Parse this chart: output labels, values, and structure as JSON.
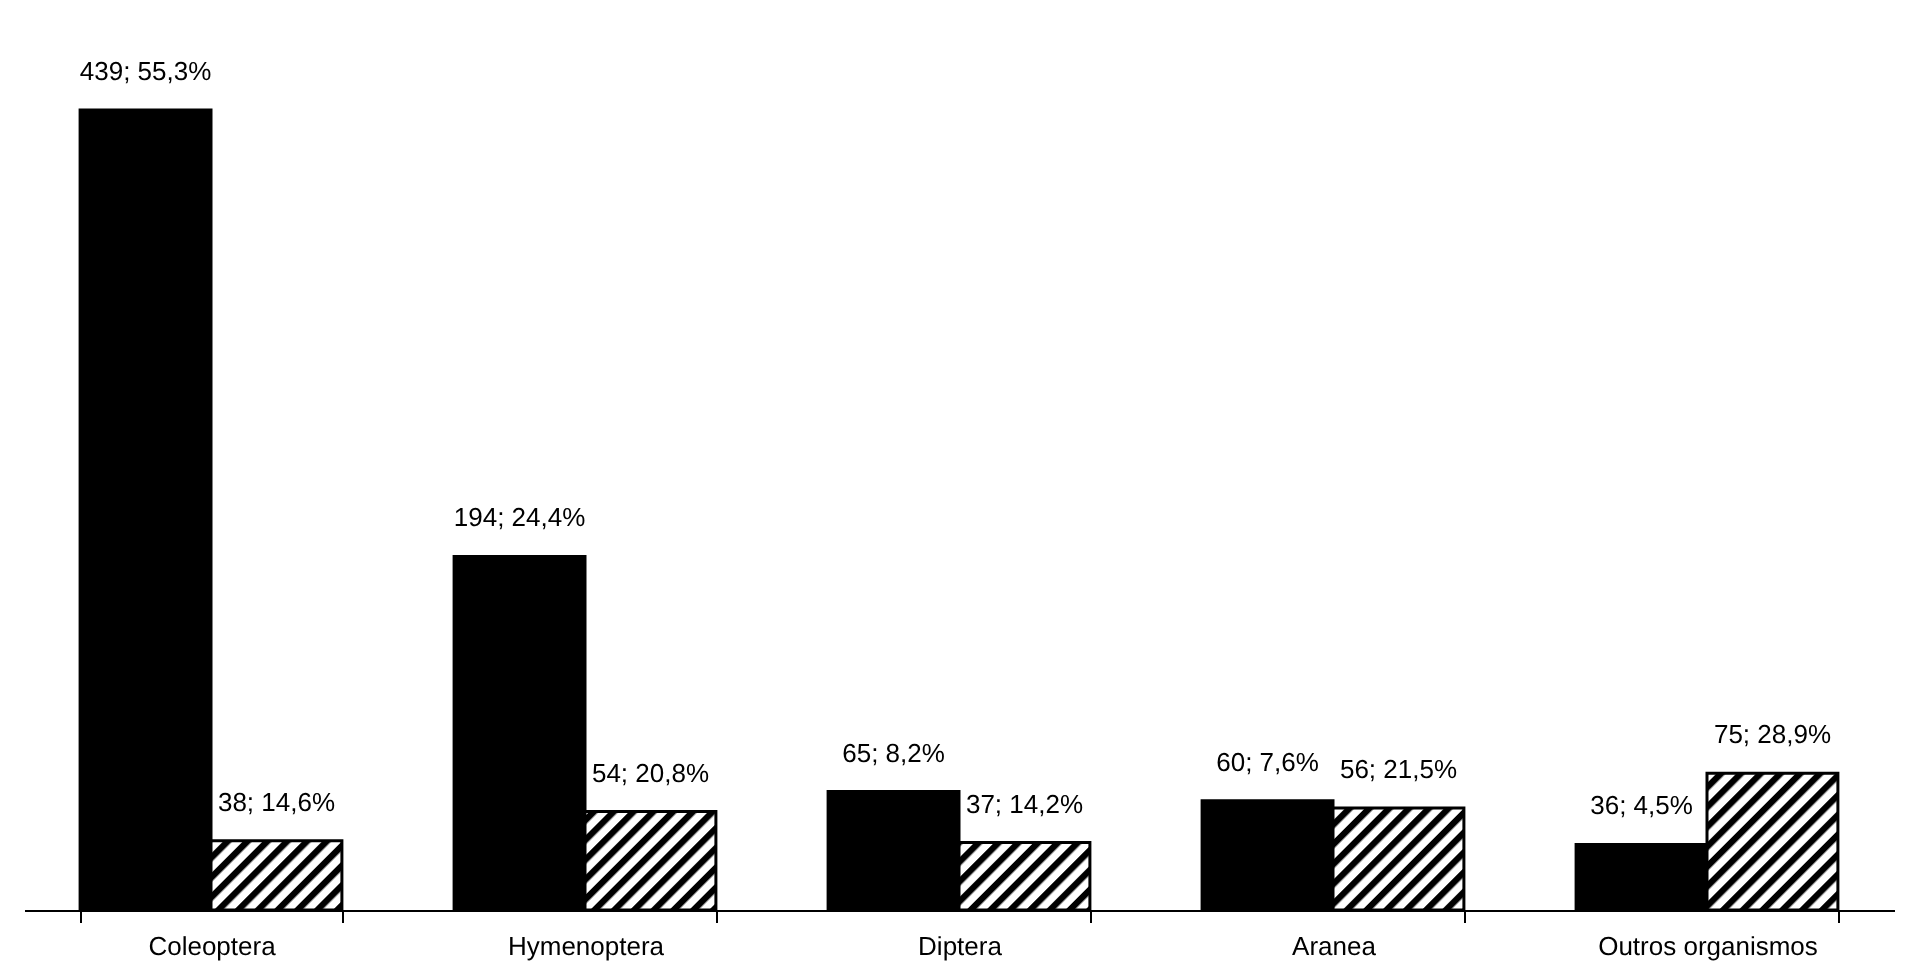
{
  "chart_data": {
    "type": "bar",
    "categories": [
      "Coleoptera",
      "Hymenoptera",
      "Diptera",
      "Aranea",
      "Outros organismos"
    ],
    "series": [
      {
        "color": "#000000",
        "values": [
          439,
          194,
          65,
          60,
          36
        ],
        "value_labels": [
          "439; 55,3%",
          "194; 24,4%",
          "65; 8,2%",
          "60; 7,6%",
          "36; 4,5%"
        ]
      },
      {
        "color": "#000000",
        "values": [
          38,
          54,
          37,
          56,
          75
        ],
        "value_labels": [
          "38; 14,6%",
          "54; 20,8%",
          "37; 14,2%",
          "56; 21,5%",
          "75; 28,9%"
        ]
      }
    ],
    "legend": false,
    "grid": false
  }
}
